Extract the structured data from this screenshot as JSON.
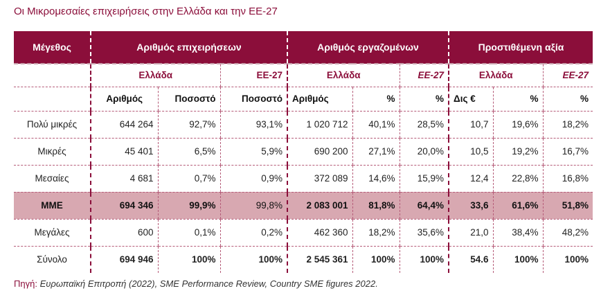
{
  "title": "Οι Μικρομεσαίες επιχειρήσεις στην Ελλάδα και την ΕΕ-27",
  "header": {
    "size": "Μέγεθος",
    "groups": [
      "Αριθμός επιχειρήσεων",
      "Αριθμός εργαζομένων",
      "Προστιθέμενη αξία"
    ],
    "regions": [
      "Ελλάδα",
      "ΕΕ-27",
      "Ελλάδα",
      "ΕΕ-27",
      "Ελλάδα",
      "ΕΕ-27"
    ],
    "columns": [
      "Αριθμός",
      "Ποσοστό",
      "Ποσοστό",
      "Αριθμός",
      "%",
      "%",
      "Δις €",
      "%",
      "%"
    ]
  },
  "rows": [
    {
      "label": "Πολύ μικρές",
      "values": [
        "644 264",
        "92,7%",
        "93,1%",
        "1 020 712",
        "40,1%",
        "28,5%",
        "10,7",
        "19,6%",
        "18,2%"
      ]
    },
    {
      "label": "Μικρές",
      "values": [
        "45 401",
        "6,5%",
        "5,9%",
        "690 200",
        "27,1%",
        "20,0%",
        "10,5",
        "19,2%",
        "16,7%"
      ]
    },
    {
      "label": "Μεσαίες",
      "values": [
        "4 681",
        "0,7%",
        "0,9%",
        "372 089",
        "14,6%",
        "15,9%",
        "12,4",
        "22,8%",
        "16,8%"
      ]
    },
    {
      "label": "ΜΜΕ",
      "values": [
        "694 346",
        "99,9%",
        "99,8%",
        "2 083 001",
        "81,8%",
        "64,4%",
        "33,6",
        "61,6%",
        "51,8%"
      ]
    },
    {
      "label": "Μεγάλες",
      "values": [
        "600",
        "0,1%",
        "0,2%",
        "462 360",
        "18,2%",
        "35,6%",
        "21,0",
        "38,4%",
        "48,2%"
      ]
    },
    {
      "label": "Σύνολο",
      "values": [
        "694 946",
        "100%",
        "100%",
        "2 545 361",
        "100%",
        "100%",
        "54.6",
        "100%",
        "100%"
      ]
    }
  ],
  "source": {
    "label": "Πηγή:",
    "text": " Ευρωπαϊκή Επιτροπή (2022), SME Performance Review, Country SME figures 2022."
  },
  "colors": {
    "accent": "#8b0e3a",
    "highlight": "#d8a8b1"
  }
}
